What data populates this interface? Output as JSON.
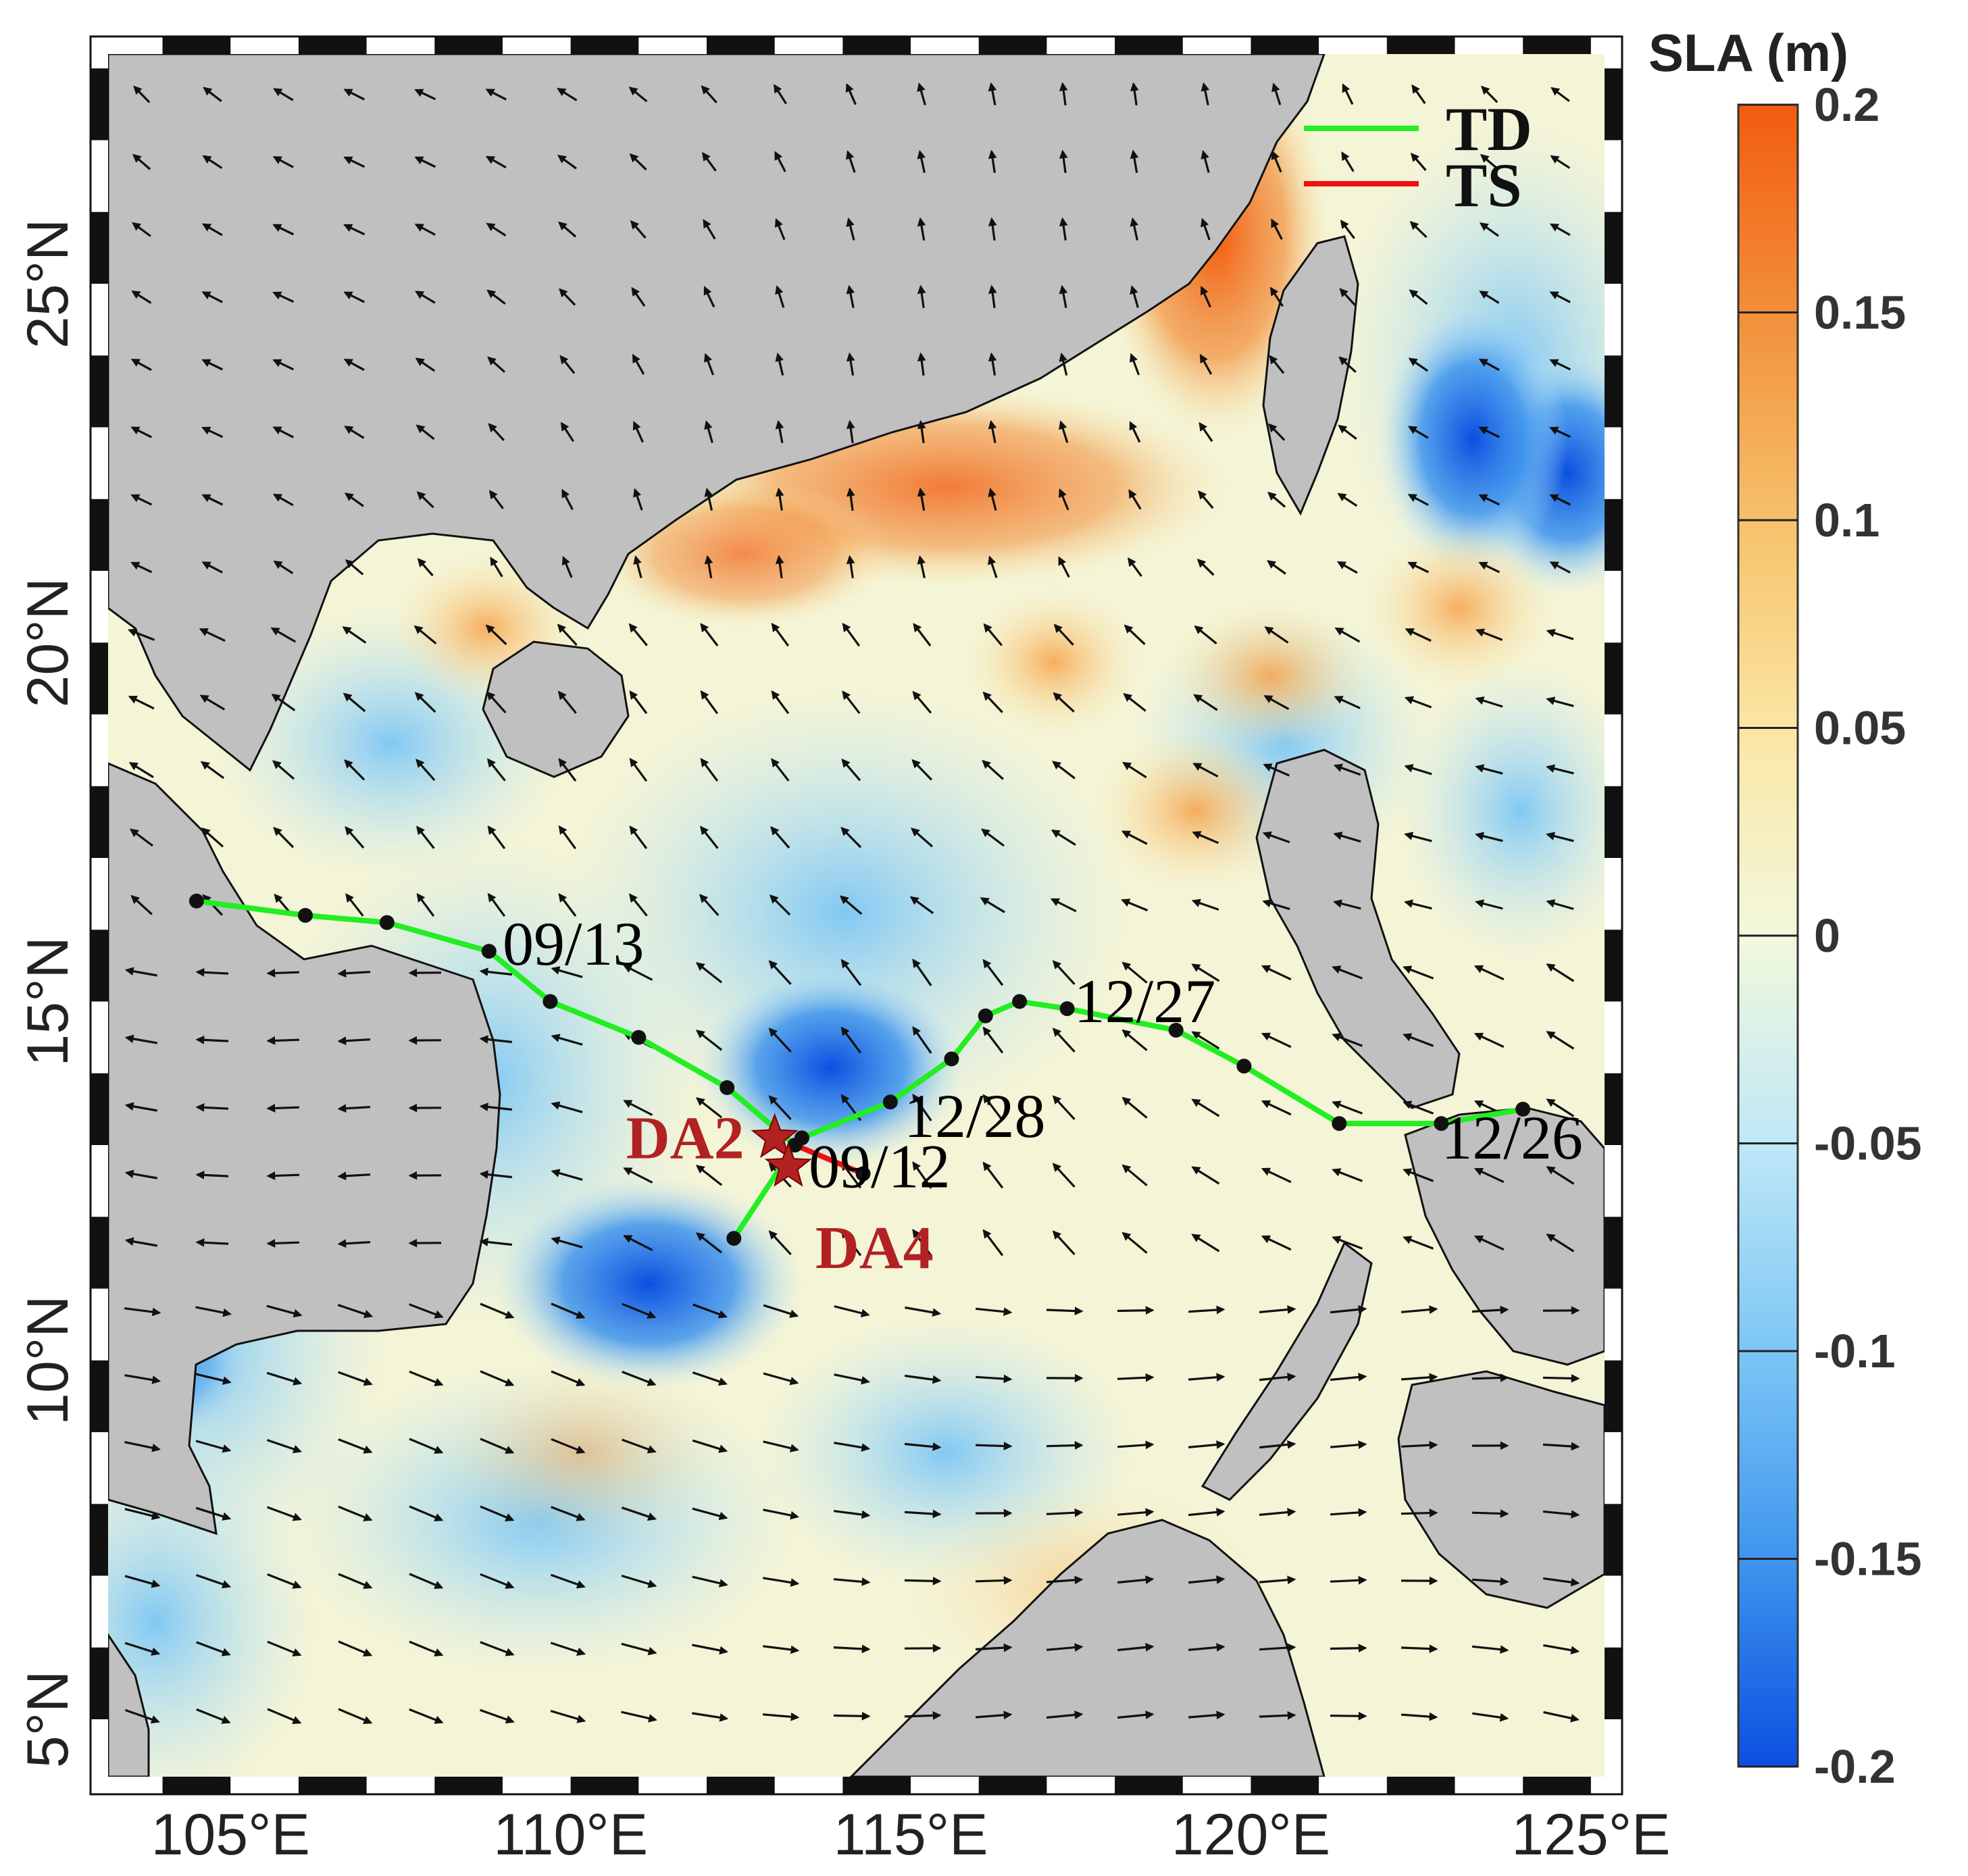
{
  "map": {
    "x_ticks": [
      "105°E",
      "110°E",
      "115°E",
      "120°E",
      "125°E"
    ],
    "y_ticks": [
      "5°N",
      "10°N",
      "15°N",
      "20°N",
      "25°N"
    ],
    "x_tick_values": [
      105,
      110,
      115,
      120,
      125
    ],
    "y_tick_values": [
      5,
      10,
      15,
      20,
      25
    ],
    "lon_range": [
      103.2,
      125.2
    ],
    "lat_range": [
      4.2,
      28.2
    ]
  },
  "colorbar": {
    "title": "SLA (m)",
    "ticks": [
      "0.2",
      "0.15",
      "0.1",
      "0.05",
      "0",
      "-0.05",
      "-0.1",
      "-0.15",
      "-0.2"
    ],
    "tick_values": [
      0.2,
      0.15,
      0.1,
      0.05,
      0,
      -0.05,
      -0.1,
      -0.15,
      -0.2
    ],
    "range": [
      -0.2,
      0.2
    ],
    "colors": [
      "#0b4fe0",
      "#3f95ee",
      "#7cc6f5",
      "#bfe8f7",
      "#f2f8dc",
      "#fbe6a4",
      "#f6c16a",
      "#f28f3a",
      "#f25c0f"
    ]
  },
  "legend": {
    "items": [
      {
        "label": "TD",
        "color": "#22ee22"
      },
      {
        "label": "TS",
        "color": "#ee1111"
      }
    ]
  },
  "tracks": {
    "track_a_lonlat": [
      [
        104.5,
        16.4
      ],
      [
        106.1,
        16.2
      ],
      [
        107.3,
        16.1
      ],
      [
        108.8,
        15.7
      ],
      [
        109.7,
        15.0
      ],
      [
        111.0,
        14.5
      ],
      [
        112.3,
        13.8
      ],
      [
        113.3,
        13.0
      ],
      [
        112.4,
        11.7
      ]
    ],
    "track_a_ts_lonlat": [
      [
        113.3,
        13.0
      ],
      [
        114.3,
        12.6
      ]
    ],
    "track_b_lonlat": [
      [
        124.0,
        13.5
      ],
      [
        122.8,
        13.3
      ],
      [
        121.3,
        13.3
      ],
      [
        119.9,
        14.1
      ],
      [
        118.9,
        14.6
      ],
      [
        117.3,
        14.9
      ],
      [
        116.6,
        15.0
      ],
      [
        116.1,
        14.8
      ],
      [
        115.6,
        14.2
      ],
      [
        114.7,
        13.6
      ],
      [
        113.4,
        13.1
      ]
    ],
    "date_labels": [
      {
        "text": "09/13",
        "lon": 109.0,
        "lat": 15.7
      },
      {
        "text": "09/12",
        "lon": 113.5,
        "lat": 12.6
      },
      {
        "text": "12/28",
        "lon": 114.9,
        "lat": 13.3
      },
      {
        "text": "12/27",
        "lon": 117.4,
        "lat": 14.9
      },
      {
        "text": "12/26",
        "lon": 122.8,
        "lat": 13.0
      }
    ]
  },
  "sites": [
    {
      "label": "DA2",
      "lon": 113.0,
      "lat": 13.1
    },
    {
      "label": "DA4",
      "lon": 113.2,
      "lat": 12.7
    }
  ],
  "colors": {
    "land": "#c0c0c0",
    "sea_base": "#f4f4d6",
    "frame": "#111111"
  }
}
